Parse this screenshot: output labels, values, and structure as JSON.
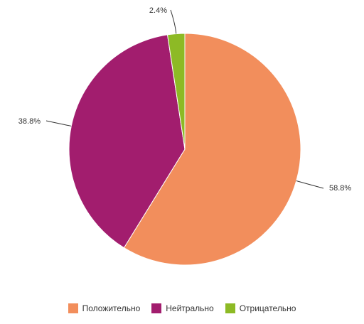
{
  "chart_data": {
    "type": "pie",
    "slices": [
      {
        "label": "Положительно",
        "value": 58.8,
        "display": "58.8%",
        "color": "#f28e5c"
      },
      {
        "label": "Нейтрально",
        "value": 38.8,
        "display": "38.8%",
        "color": "#a21d6e"
      },
      {
        "label": "Отрицательно",
        "value": 2.4,
        "display": "2.4%",
        "color": "#8dba25"
      }
    ],
    "start_angle_deg": 0,
    "direction": "clockwise",
    "legend_position": "bottom"
  }
}
